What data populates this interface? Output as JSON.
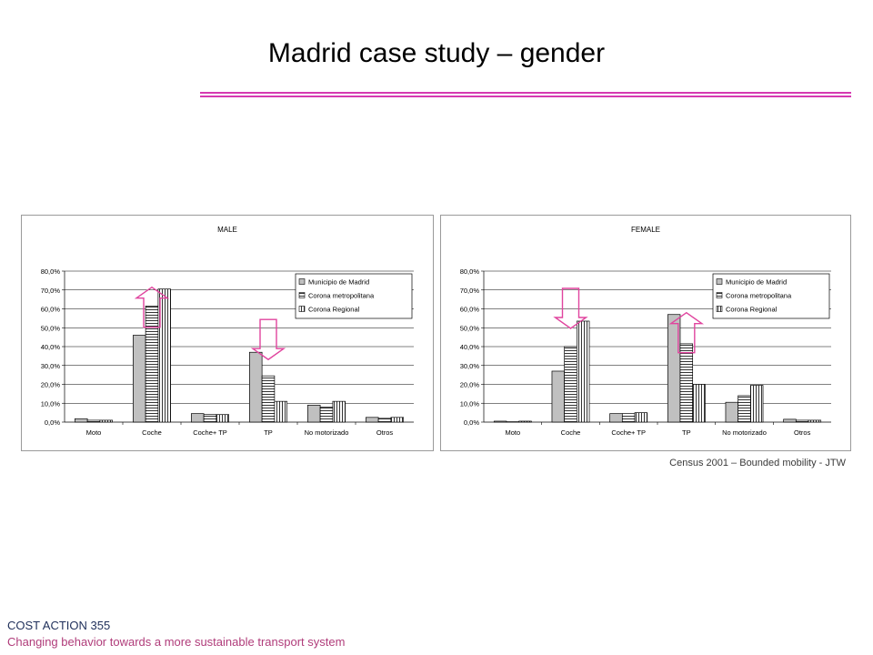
{
  "slide": {
    "title": "Madrid case study – gender",
    "source": "Census 2001 – Bounded mobility - JTW",
    "footer_line1": "COST ACTION 355",
    "footer_line2": "Changing behavior towards a more sustainable transport system",
    "accent_color": "#d63ab1",
    "arrow_color": "#e0449e"
  },
  "chart_data": [
    {
      "type": "bar",
      "title": "MALE",
      "categories": [
        "Moto",
        "Coche",
        "Coche+ TP",
        "TP",
        "No motorizado",
        "Otros"
      ],
      "series": [
        {
          "name": "Municipio de Madrid",
          "values": [
            1.8,
            46.0,
            4.5,
            37.0,
            9.0,
            2.5
          ]
        },
        {
          "name": "Corona metropolitana",
          "values": [
            1.0,
            61.5,
            4.0,
            24.5,
            8.0,
            2.0
          ]
        },
        {
          "name": "Corona Regional",
          "values": [
            1.0,
            70.5,
            4.0,
            11.0,
            11.0,
            2.5
          ]
        }
      ],
      "ylim": [
        0,
        80
      ],
      "yticks": [
        "0,0%",
        "10,0%",
        "20,0%",
        "30,0%",
        "40,0%",
        "50,0%",
        "60,0%",
        "70,0%",
        "80,0%"
      ],
      "grid": true,
      "legend": "top-right",
      "arrows": [
        {
          "category": "Coche",
          "direction": "up"
        },
        {
          "category": "TP",
          "direction": "down"
        }
      ]
    },
    {
      "type": "bar",
      "title": "FEMALE",
      "categories": [
        "Moto",
        "Coche",
        "Coche+ TP",
        "TP",
        "No motorizado",
        "Otros"
      ],
      "series": [
        {
          "name": "Municipio de Madrid",
          "values": [
            0.5,
            27.0,
            4.5,
            57.0,
            10.5,
            1.5
          ]
        },
        {
          "name": "Corona metropolitana",
          "values": [
            0.2,
            40.0,
            4.5,
            41.5,
            14.0,
            1.0
          ]
        },
        {
          "name": "Corona Regional",
          "values": [
            0.5,
            53.5,
            5.0,
            20.0,
            19.5,
            1.0
          ]
        }
      ],
      "ylim": [
        0,
        80
      ],
      "yticks": [
        "0,0%",
        "10,0%",
        "20,0%",
        "30,0%",
        "40,0%",
        "50,0%",
        "60,0%",
        "70,0%",
        "80,0%"
      ],
      "grid": true,
      "legend": "top-right",
      "arrows": [
        {
          "category": "Coche",
          "direction": "down"
        },
        {
          "category": "TP",
          "direction": "up"
        }
      ]
    }
  ]
}
